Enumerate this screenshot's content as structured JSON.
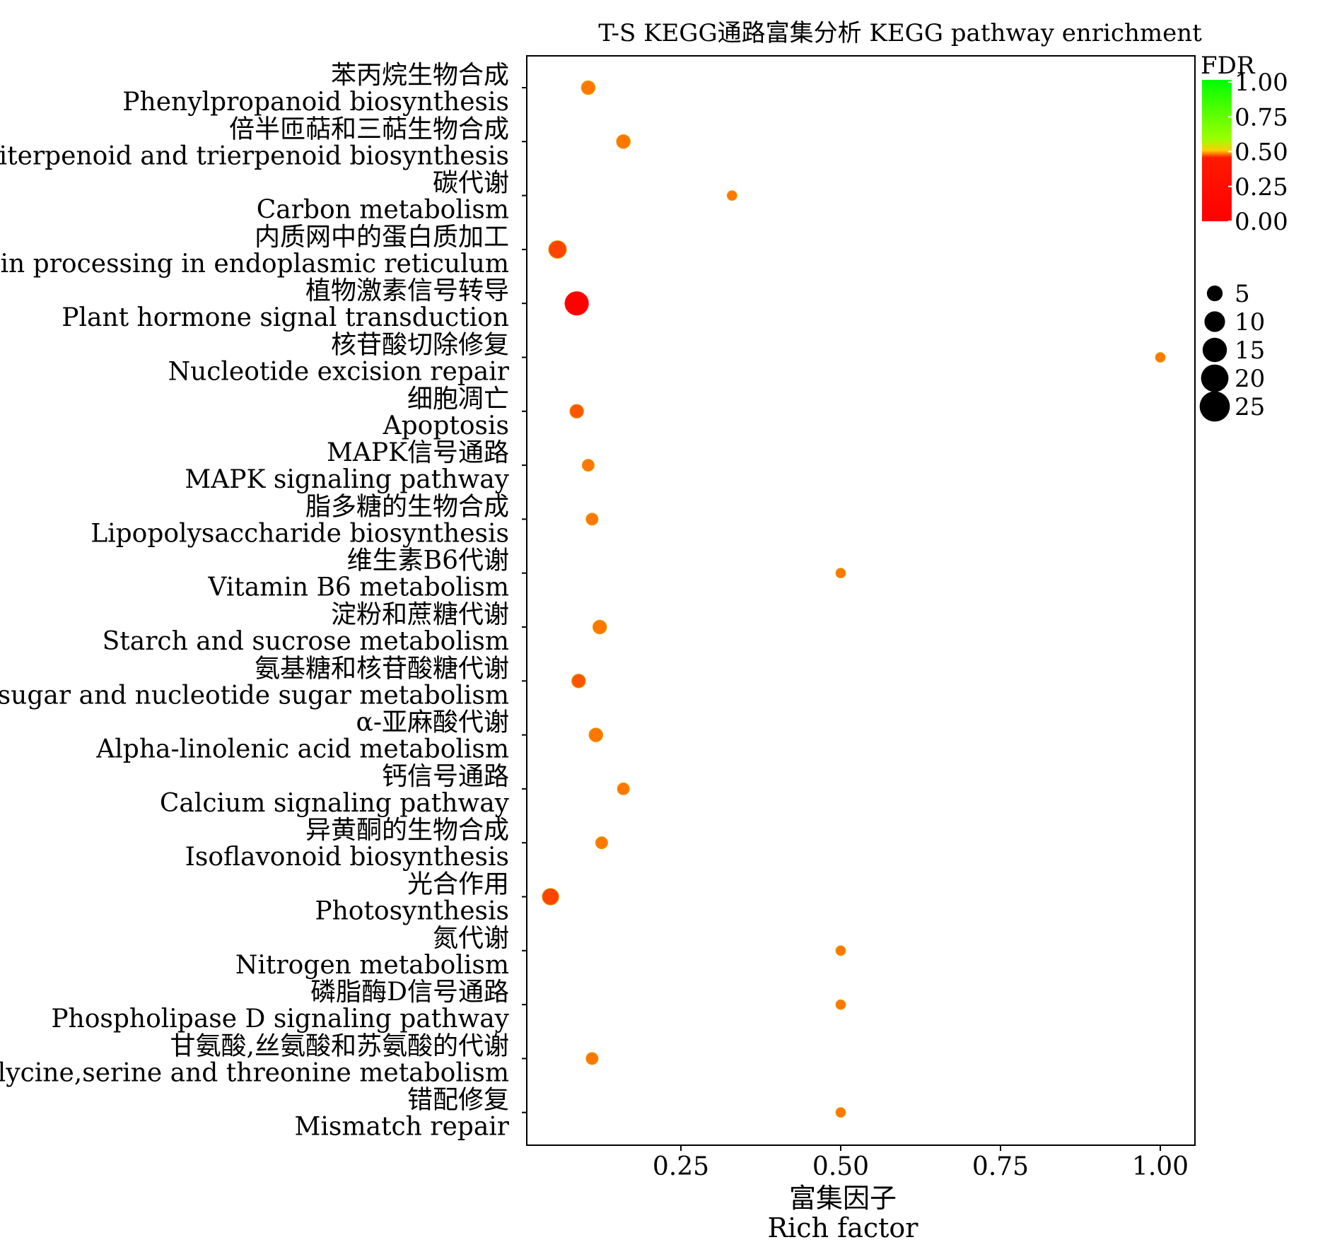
{
  "chart_data": {
    "type": "scatter",
    "title": "T-S    KEGG通路富集分析 KEGG pathway enrichment",
    "xlabel_cn": "富集因子",
    "xlabel_en": "Rich factor",
    "xlim": [
      0.0,
      1.05
    ],
    "xticks": [
      "0.25",
      "0.50",
      "0.75",
      "1.00"
    ],
    "xtick_values": [
      0.25,
      0.5,
      0.75,
      1.0
    ],
    "categories": [
      {
        "cn": "苯丙烷生物合成",
        "en": "Phenylpropanoid biosynthesis"
      },
      {
        "cn": "倍半匝萜和三萜生物合成",
        "en": "Sesquiterpenoid and trierpenoid biosynthesis"
      },
      {
        "cn": "碳代谢",
        "en": "Carbon metabolism"
      },
      {
        "cn": "内质网中的蛋白质加工",
        "en": "Protein processing in endoplasmic reticulum"
      },
      {
        "cn": "植物激素信号转导",
        "en": "Plant hormone signal transduction"
      },
      {
        "cn": "核苷酸切除修复",
        "en": "Nucleotide excision repair"
      },
      {
        "cn": "细胞凋亡",
        "en": "Apoptosis"
      },
      {
        "cn": "MAPK信号通路",
        "en": "MAPK signaling pathway"
      },
      {
        "cn": "脂多糖的生物合成",
        "en": "Lipopolysaccharide biosynthesis"
      },
      {
        "cn": "维生素B6代谢",
        "en": "Vitamin B6 metabolism"
      },
      {
        "cn": "淀粉和蔗糖代谢",
        "en": "Starch and sucrose metabolism"
      },
      {
        "cn": "氨基糖和核苷酸糖代谢",
        "en": "Amino sugar and nucleotide sugar metabolism"
      },
      {
        "cn": "α-亚麻酸代谢",
        "en": "Alpha-linolenic acid metabolism"
      },
      {
        "cn": "钙信号通路",
        "en": "Calcium signaling pathway"
      },
      {
        "cn": "异黄酮的生物合成",
        "en": "Isoflavonoid biosynthesis"
      },
      {
        "cn": "光合作用",
        "en": "Photosynthesis"
      },
      {
        "cn": "氮代谢",
        "en": "Nitrogen metabolism"
      },
      {
        "cn": "磷脂酶D信号通路",
        "en": "Phospholipase D signaling pathway"
      },
      {
        "cn": "甘氨酸,丝氨酸和苏氨酸的代谢",
        "en": "Glycine,serine and threonine metabolism"
      },
      {
        "cn": "错配修复",
        "en": "Mismatch repair"
      }
    ],
    "points": [
      {
        "rich_factor": 0.105,
        "count": 3,
        "fdr": 0.45
      },
      {
        "rich_factor": 0.16,
        "count": 3,
        "fdr": 0.45
      },
      {
        "rich_factor": 0.33,
        "count": 1,
        "fdr": 0.45
      },
      {
        "rich_factor": 0.057,
        "count": 6,
        "fdr": 0.42
      },
      {
        "rich_factor": 0.087,
        "count": 13,
        "fdr": 0.02
      },
      {
        "rich_factor": 1.0,
        "count": 1,
        "fdr": 0.45
      },
      {
        "rich_factor": 0.087,
        "count": 3,
        "fdr": 0.43
      },
      {
        "rich_factor": 0.105,
        "count": 2,
        "fdr": 0.45
      },
      {
        "rich_factor": 0.111,
        "count": 2,
        "fdr": 0.45
      },
      {
        "rich_factor": 0.5,
        "count": 1,
        "fdr": 0.45
      },
      {
        "rich_factor": 0.123,
        "count": 3,
        "fdr": 0.45
      },
      {
        "rich_factor": 0.09,
        "count": 3,
        "fdr": 0.43
      },
      {
        "rich_factor": 0.117,
        "count": 3,
        "fdr": 0.45
      },
      {
        "rich_factor": 0.16,
        "count": 2,
        "fdr": 0.45
      },
      {
        "rich_factor": 0.126,
        "count": 2,
        "fdr": 0.45
      },
      {
        "rich_factor": 0.046,
        "count": 5,
        "fdr": 0.42
      },
      {
        "rich_factor": 0.5,
        "count": 1,
        "fdr": 0.45
      },
      {
        "rich_factor": 0.5,
        "count": 1,
        "fdr": 0.45
      },
      {
        "rich_factor": 0.111,
        "count": 2,
        "fdr": 0.45
      },
      {
        "rich_factor": 0.5,
        "count": 1,
        "fdr": 0.45
      }
    ],
    "color_legend": {
      "title": "FDR",
      "ticks": [
        "1.00",
        "0.75",
        "0.50",
        "0.25",
        "0.00"
      ],
      "tick_values": [
        1.0,
        0.75,
        0.5,
        0.25,
        0.0
      ],
      "colors": {
        "low": "#ff0000",
        "mid": "#ffcc00",
        "high": "#00ff00"
      }
    },
    "size_legend": {
      "labels": [
        "5",
        "10",
        "15",
        "20",
        "25"
      ],
      "values": [
        5,
        10,
        15,
        20,
        25
      ]
    },
    "grid": false,
    "legend_position": "right"
  }
}
